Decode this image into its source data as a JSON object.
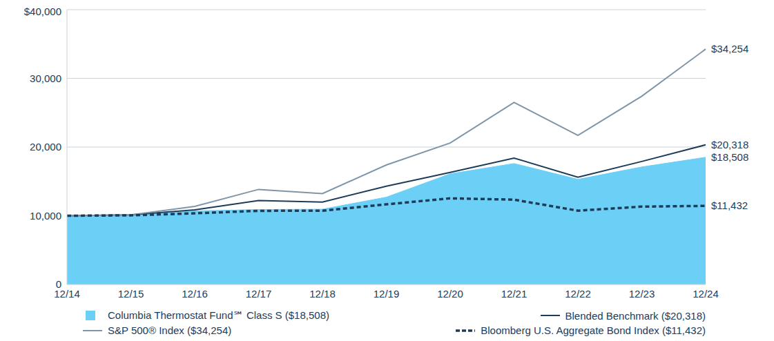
{
  "chart_data": {
    "type": "line",
    "categories": [
      "12/14",
      "12/15",
      "12/16",
      "12/17",
      "12/18",
      "12/19",
      "12/20",
      "12/21",
      "12/22",
      "12/23",
      "12/24"
    ],
    "ylim": [
      0,
      40000
    ],
    "yticks": [
      0,
      {
        "value": 10000,
        "label": "10,000"
      },
      {
        "value": 20000,
        "label": "20,000"
      },
      {
        "value": 30000,
        "label": "30,000"
      },
      {
        "value": 40000,
        "label": "$40,000"
      }
    ],
    "grid": true,
    "legend": "bottom",
    "series": [
      {
        "name": "Columbia Thermostat Fund℠ Class S ($18,508)",
        "type": "area",
        "color": "#6ccff6",
        "values": [
          10000,
          10050,
          10700,
          10900,
          10950,
          12700,
          16100,
          17600,
          15300,
          17100,
          18508
        ],
        "value_labels": [
          null,
          null,
          null,
          null,
          null,
          null,
          null,
          null,
          null,
          null,
          "$18,508"
        ]
      },
      {
        "name": "Blended Benchmark ($20,318)",
        "type": "line",
        "color": "#1d3c5a",
        "line_style": "solid",
        "values": [
          10000,
          10120,
          10850,
          12200,
          11980,
          14300,
          16300,
          18400,
          15600,
          17900,
          20318
        ],
        "value_labels": [
          null,
          null,
          null,
          null,
          null,
          null,
          null,
          null,
          null,
          null,
          "$20,318"
        ]
      },
      {
        "name": "S&P 500® Index ($34,254)",
        "type": "line",
        "color": "#7f95a8",
        "line_style": "solid",
        "values": [
          10000,
          10138,
          11351,
          13829,
          13222,
          17386,
          20585,
          26494,
          21696,
          27399,
          34254
        ],
        "value_labels": [
          null,
          null,
          null,
          null,
          null,
          null,
          null,
          null,
          null,
          null,
          "$34,254"
        ]
      },
      {
        "name": "Bloomberg U.S. Aggregate Bond Index ($11,432)",
        "type": "line",
        "color": "#1d3c5a",
        "line_style": "dashed",
        "values": [
          10000,
          10055,
          10348,
          10715,
          10720,
          11655,
          12531,
          12338,
          10733,
          11327,
          11432
        ],
        "value_labels": [
          null,
          null,
          null,
          null,
          null,
          null,
          null,
          null,
          null,
          null,
          "$11,432"
        ]
      }
    ]
  }
}
